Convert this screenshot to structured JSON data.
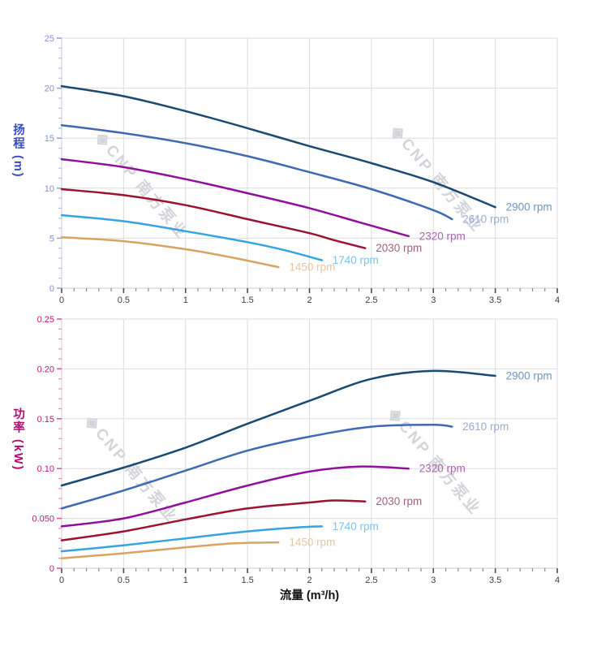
{
  "watermark": {
    "logo_glyph": "◈",
    "text": "CNP 南方泵业"
  },
  "x_axis_title": "流量 (m³/h)",
  "axes_shared": {
    "grid_color": "#dcdcdc",
    "x_axis_line_color": "#c9c9c9",
    "x_tick_color": "#4d4d4d",
    "x_minor_tick_color": "#8a8a8a",
    "x_tick_label_color": "#3d3d3d"
  },
  "chart_data": [
    {
      "type": "line",
      "id": "head",
      "title": "",
      "xlabel": "流量 (m³/h)",
      "ylabel": "扬程 (m)",
      "xlim": [
        0,
        4
      ],
      "ylim": [
        0,
        25
      ],
      "x_major_step": 0.5,
      "x_minor_step": 0.1,
      "y_major_step": 5,
      "y_minor_step": 1,
      "x_tick_labels": [
        "0",
        "0.5",
        "1",
        "1.5",
        "2",
        "2.5",
        "3",
        "3.5",
        "4"
      ],
      "y_tick_labels": [
        "0",
        "5",
        "10",
        "15",
        "20",
        "25"
      ],
      "grid": true,
      "legend_position": "curve-end",
      "y_tick_label_color": "#8290d8",
      "y_axis_line_color": "#c6cde9",
      "y_tick_color": "#97a6e0",
      "y_minor_tick_color": "#b4c0ea",
      "y_title_color": "#3949c8",
      "series": [
        {
          "name": "2900 rpm",
          "color": "#1a4a73",
          "label_color": "#6e96bd",
          "x": [
            0,
            0.5,
            1,
            1.5,
            2,
            2.5,
            3,
            3.5
          ],
          "y": [
            20.2,
            19.2,
            17.7,
            16.0,
            14.2,
            12.5,
            10.6,
            8.1
          ]
        },
        {
          "name": "2610 rpm",
          "color": "#3f69b2",
          "label_color": "#9aa9d9",
          "x": [
            0,
            0.5,
            1,
            1.5,
            2,
            2.5,
            3,
            3.15
          ],
          "y": [
            16.3,
            15.5,
            14.5,
            13.2,
            11.6,
            9.9,
            7.8,
            6.9
          ]
        },
        {
          "name": "2320 rpm",
          "color": "#90109c",
          "label_color": "#a965ae",
          "x": [
            0,
            0.5,
            1,
            1.5,
            2,
            2.4,
            2.8
          ],
          "y": [
            12.9,
            12.1,
            10.9,
            9.5,
            8.0,
            6.6,
            5.2
          ]
        },
        {
          "name": "2030 rpm",
          "color": "#9c1332",
          "label_color": "#a5607b",
          "x": [
            0,
            0.5,
            1,
            1.5,
            2,
            2.2,
            2.45
          ],
          "y": [
            9.9,
            9.3,
            8.3,
            6.9,
            5.5,
            4.8,
            4.0
          ]
        },
        {
          "name": "1740 rpm",
          "color": "#35a4e0",
          "label_color": "#7cc4ec",
          "x": [
            0,
            0.5,
            1,
            1.5,
            1.8,
            2.1
          ],
          "y": [
            7.3,
            6.7,
            5.7,
            4.6,
            3.8,
            2.8
          ]
        },
        {
          "name": "1450 rpm",
          "color": "#d9a45f",
          "label_color": "#e6c7a0",
          "x": [
            0,
            0.5,
            1,
            1.4,
            1.75
          ],
          "y": [
            5.1,
            4.7,
            3.9,
            3.0,
            2.1
          ]
        }
      ]
    },
    {
      "type": "line",
      "id": "power",
      "title": "",
      "xlabel": "流量 (m³/h)",
      "ylabel": "功率 (kW)",
      "xlim": [
        0,
        4
      ],
      "ylim": [
        0,
        0.25
      ],
      "x_major_step": 0.5,
      "x_minor_step": 0.1,
      "y_major_step": 0.05,
      "y_minor_step": 0.01,
      "x_tick_labels": [
        "0",
        "0.5",
        "1",
        "1.5",
        "2",
        "2.5",
        "3",
        "3.5",
        "4"
      ],
      "y_tick_labels": [
        "0",
        "0.050",
        "0.10",
        "0.15",
        "0.20",
        "0.25"
      ],
      "grid": true,
      "legend_position": "curve-end",
      "y_tick_label_color": "#c2187f",
      "y_axis_line_color": "#e9c0d8",
      "y_tick_color": "#cc5fa4",
      "y_minor_tick_color": "#dd93c2",
      "y_title_color": "#ad0f70",
      "series": [
        {
          "name": "2900 rpm",
          "color": "#1a4a73",
          "label_color": "#6e96bd",
          "x": [
            0,
            0.5,
            1,
            1.5,
            2,
            2.5,
            3,
            3.5
          ],
          "y": [
            0.083,
            0.101,
            0.121,
            0.145,
            0.168,
            0.19,
            0.198,
            0.193
          ]
        },
        {
          "name": "2610 rpm",
          "color": "#3f69b2",
          "label_color": "#9aa9d9",
          "x": [
            0,
            0.5,
            1,
            1.5,
            2,
            2.5,
            3,
            3.15
          ],
          "y": [
            0.06,
            0.078,
            0.098,
            0.118,
            0.132,
            0.142,
            0.144,
            0.142
          ]
        },
        {
          "name": "2320 rpm",
          "color": "#90109c",
          "label_color": "#a965ae",
          "x": [
            0,
            0.5,
            1,
            1.5,
            2,
            2.4,
            2.8
          ],
          "y": [
            0.042,
            0.05,
            0.066,
            0.083,
            0.097,
            0.102,
            0.1
          ]
        },
        {
          "name": "2030 rpm",
          "color": "#9c1332",
          "label_color": "#a5607b",
          "x": [
            0,
            0.5,
            1,
            1.5,
            2,
            2.2,
            2.45
          ],
          "y": [
            0.028,
            0.037,
            0.049,
            0.06,
            0.066,
            0.068,
            0.067
          ]
        },
        {
          "name": "1740 rpm",
          "color": "#35a4e0",
          "label_color": "#7cc4ec",
          "x": [
            0,
            0.5,
            1,
            1.5,
            1.9,
            2.1
          ],
          "y": [
            0.017,
            0.023,
            0.03,
            0.037,
            0.041,
            0.042
          ]
        },
        {
          "name": "1450 rpm",
          "color": "#d9a45f",
          "label_color": "#e6c7a0",
          "x": [
            0,
            0.5,
            1,
            1.4,
            1.75
          ],
          "y": [
            0.01,
            0.015,
            0.021,
            0.025,
            0.026
          ]
        }
      ]
    }
  ]
}
